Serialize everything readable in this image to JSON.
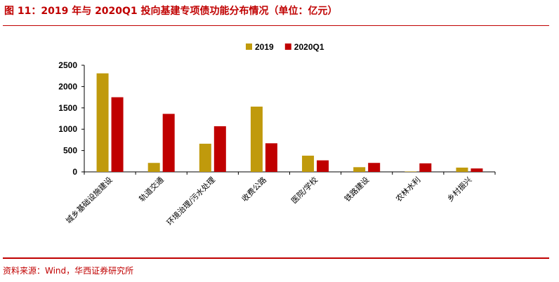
{
  "header": {
    "title": "图 11：2019 年与 2020Q1 投向基建专项债功能分布情况（单位：亿元）"
  },
  "footer": {
    "source": "资料来源：Wind，华西证券研究所"
  },
  "colors": {
    "accent": "#c00000",
    "series_2019": "#c09a0c",
    "series_2020q1": "#c00000"
  },
  "chart_data": {
    "type": "bar",
    "title": "",
    "xlabel": "",
    "ylabel": "",
    "ylim": [
      0,
      2500
    ],
    "yticks": [
      0,
      500,
      1000,
      1500,
      2000,
      2500
    ],
    "grid": false,
    "legend_position": "top-center",
    "categories": [
      "城乡基础设施建设",
      "轨道交通",
      "环境治理/污水处理",
      "收费公路",
      "医院/学校",
      "铁路建设",
      "农林水利",
      "乡村振兴"
    ],
    "series": [
      {
        "name": "2019",
        "color": "#c09a0c",
        "values": [
          2310,
          210,
          660,
          1530,
          380,
          110,
          10,
          100
        ]
      },
      {
        "name": "2020Q1",
        "color": "#c00000",
        "values": [
          1750,
          1360,
          1070,
          670,
          270,
          210,
          200,
          80
        ]
      }
    ]
  }
}
